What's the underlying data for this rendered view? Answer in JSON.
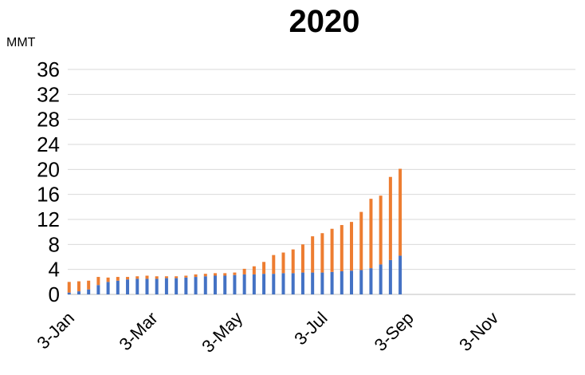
{
  "chart_data": {
    "type": "bar",
    "stacked": true,
    "title": "2020",
    "ylabel": "MMT",
    "ylim": [
      0,
      36
    ],
    "yticks": [
      0,
      4,
      8,
      12,
      16,
      20,
      24,
      28,
      32,
      36
    ],
    "xlim": [
      "2020-01-01",
      "2020-12-31"
    ],
    "xticks": [
      "2020-01-03",
      "2020-03-03",
      "2020-05-03",
      "2020-07-03",
      "2020-09-03",
      "2020-11-03"
    ],
    "xtick_labels": [
      "3-Jan",
      "3-Mar",
      "3-May",
      "3-Jul",
      "3-Sep",
      "3-Nov"
    ],
    "grid": true,
    "legend": "none",
    "x": [
      "2020-01-02",
      "2020-01-09",
      "2020-01-16",
      "2020-01-23",
      "2020-01-30",
      "2020-02-06",
      "2020-02-13",
      "2020-02-20",
      "2020-02-27",
      "2020-03-05",
      "2020-03-12",
      "2020-03-19",
      "2020-03-26",
      "2020-04-02",
      "2020-04-09",
      "2020-04-16",
      "2020-04-23",
      "2020-04-30",
      "2020-05-07",
      "2020-05-14",
      "2020-05-21",
      "2020-05-28",
      "2020-06-04",
      "2020-06-11",
      "2020-06-18",
      "2020-06-25",
      "2020-07-02",
      "2020-07-09",
      "2020-07-16",
      "2020-07-23",
      "2020-07-30",
      "2020-08-06",
      "2020-08-13",
      "2020-08-20",
      "2020-08-27"
    ],
    "series": [
      {
        "color": "#4472c4",
        "values": [
          0.3,
          0.5,
          0.8,
          1.5,
          2.0,
          2.2,
          2.4,
          2.5,
          2.5,
          2.5,
          2.6,
          2.6,
          2.7,
          2.8,
          2.9,
          3.0,
          3.0,
          3.1,
          3.2,
          3.2,
          3.3,
          3.3,
          3.4,
          3.4,
          3.5,
          3.5,
          3.5,
          3.6,
          3.7,
          3.8,
          3.9,
          4.2,
          4.8,
          5.5,
          6.2
        ]
      },
      {
        "color": "#ed7d31",
        "values": [
          1.7,
          1.6,
          1.4,
          1.3,
          0.7,
          0.6,
          0.4,
          0.4,
          0.5,
          0.4,
          0.3,
          0.3,
          0.3,
          0.4,
          0.4,
          0.4,
          0.4,
          0.4,
          0.9,
          1.3,
          1.9,
          3.0,
          3.3,
          3.8,
          4.5,
          5.8,
          6.3,
          6.9,
          7.4,
          7.8,
          9.3,
          11.1,
          11.0,
          13.3,
          13.9
        ]
      }
    ]
  }
}
